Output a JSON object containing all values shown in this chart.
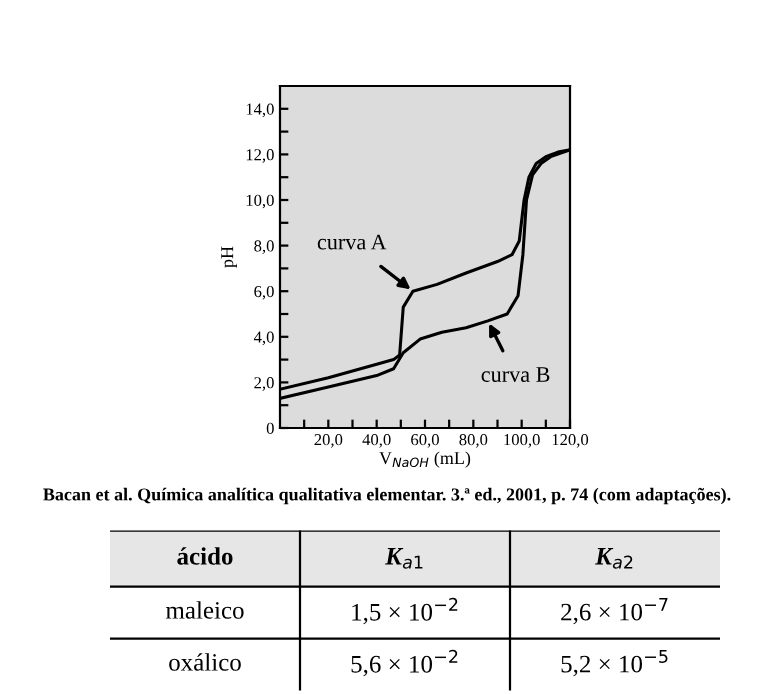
{
  "chart_data": [
    {
      "type": "line",
      "xlabel": "V$_{NaOH}$ (mL)",
      "ylabel": "pH",
      "xlim": [
        0,
        120
      ],
      "ylim": [
        0,
        15
      ],
      "xticks": [
        {
          "value": 10,
          "label": null
        },
        {
          "value": 20,
          "label": "20,0"
        },
        {
          "value": 30,
          "label": null
        },
        {
          "value": 40,
          "label": "40,0"
        },
        {
          "value": 50,
          "label": null
        },
        {
          "value": 60,
          "label": "60,0"
        },
        {
          "value": 70,
          "label": null
        },
        {
          "value": 80,
          "label": "80,0"
        },
        {
          "value": 90,
          "label": null
        },
        {
          "value": 100,
          "label": "100,0"
        },
        {
          "value": 110,
          "label": null
        },
        {
          "value": 120,
          "label": "120,0"
        }
      ],
      "yticks": [
        0,
        {
          "value": 1,
          "label": null
        },
        {
          "value": 2,
          "label": "2,0"
        },
        {
          "value": 3,
          "label": null
        },
        {
          "value": 4,
          "label": "4,0"
        },
        {
          "value": 5,
          "label": null
        },
        {
          "value": 6,
          "label": "6,0"
        },
        {
          "value": 7,
          "label": null
        },
        {
          "value": 8,
          "label": "8,0"
        },
        {
          "value": 9,
          "label": null
        },
        {
          "value": 10,
          "label": "10,0"
        },
        {
          "value": 11,
          "label": null
        },
        {
          "value": 12,
          "label": "12,0"
        },
        {
          "value": 13,
          "label": null
        },
        {
          "value": 14,
          "label": "14,0"
        }
      ],
      "grid": false,
      "legend": false,
      "marker": "none",
      "line_style": "solid",
      "series": [
        {
          "color": "#000000",
          "x": [
            0,
            20,
            40,
            47,
            49.5,
            51,
            55,
            65,
            77,
            90,
            96,
            99,
            101,
            103,
            106,
            110,
            115,
            120
          ],
          "values": [
            1.7,
            2.2,
            2.8,
            3.0,
            3.2,
            5.3,
            6.0,
            6.3,
            6.8,
            7.3,
            7.6,
            8.2,
            10.0,
            11.0,
            11.6,
            11.9,
            12.1,
            12.2
          ]
        },
        {
          "color": "#000000",
          "x": [
            0,
            20,
            40,
            47,
            51,
            58,
            67,
            77,
            86,
            94,
            98.5,
            100.5,
            102,
            104.5,
            108,
            112,
            120
          ],
          "values": [
            1.3,
            1.8,
            2.3,
            2.6,
            3.3,
            3.9,
            4.2,
            4.4,
            4.7,
            5.0,
            5.8,
            7.6,
            10.0,
            11.1,
            11.6,
            11.9,
            12.2
          ]
        }
      ],
      "annotations": [
        {
          "text": "curva A",
          "x": 55,
          "y": 6.0
        },
        {
          "text": "curva B",
          "x": 86,
          "y": 4.7
        },
        "Bacan et al. Química analítica qualitativa elementar. 3.ª ed., 2001, p. 74 (com adaptações)."
      ]
    },
    {
      "type": "other",
      "categories": [
        "ácido",
        "K$_{a1}$",
        "K$_{a2}$"
      ],
      "y_categories": [
        "maleico",
        "oxálico"
      ],
      "cell_labels": [
        [
          "1,5 × 10$^{−2}$",
          "2,6 × 10$^{−7}$"
        ],
        [
          "5,6 × 10$^{−2}$",
          "5,2 × 10$^{−5}$"
        ]
      ]
    }
  ]
}
